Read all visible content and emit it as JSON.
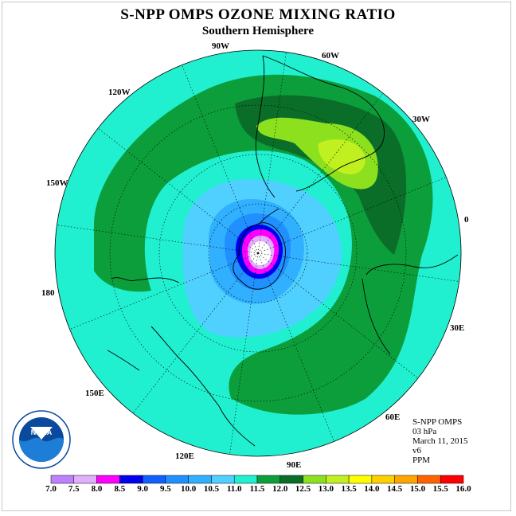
{
  "title": "S-NPP OMPS OZONE MIXING RATIO",
  "subtitle": "Southern Hemisphere",
  "longitude_labels": {
    "w90": "90W",
    "w60": "60W",
    "w30": "30W",
    "zero": "0",
    "e30": "30E",
    "e60": "60E",
    "e90": "90E",
    "e120": "120E",
    "e150": "150E",
    "d180": "180",
    "w150": "150W",
    "w120": "120W"
  },
  "info": {
    "instrument": "S-NPP OMPS",
    "level": "03 hPa",
    "date": "March 11, 2015",
    "version": "v6",
    "units": "PPM"
  },
  "logo": {
    "text": "NOAA",
    "ring_text": "NATIONAL OCEANIC AND ATMOSPHERIC ADMINISTRATION · U.S. DEPARTMENT OF COMMERCE"
  },
  "colorbar": {
    "ticks": [
      "7.0",
      "7.5",
      "8.0",
      "8.5",
      "9.0",
      "9.5",
      "10.0",
      "10.5",
      "11.0",
      "11.5",
      "12.0",
      "12.5",
      "13.0",
      "13.5",
      "14.0",
      "14.5",
      "15.0",
      "15.5",
      "16.0"
    ],
    "colors": [
      "#bf80ff",
      "#e0b0ff",
      "#ff00ff",
      "#0000ee",
      "#1060ff",
      "#2090ff",
      "#30b0ff",
      "#50d0ff",
      "#20f0d0",
      "#0d9e3c",
      "#0a6e28",
      "#8ce01e",
      "#c0f020",
      "#ffff00",
      "#ffd000",
      "#ffa500",
      "#ff6400",
      "#ff0000",
      "#8b5a3c"
    ]
  },
  "map_colors": {
    "ocean_base": "#20f0d0",
    "band_outer": "#0d9e3c",
    "band_inner": "#0a6e28",
    "high1": "#8ce01e",
    "high2": "#c0f020",
    "low1": "#50d0ff",
    "low2": "#30b0ff",
    "low3": "#2090ff",
    "low4": "#0000ee",
    "low5": "#ff00ff",
    "low6": "#e0b0ff",
    "pole": "#ffffff"
  }
}
